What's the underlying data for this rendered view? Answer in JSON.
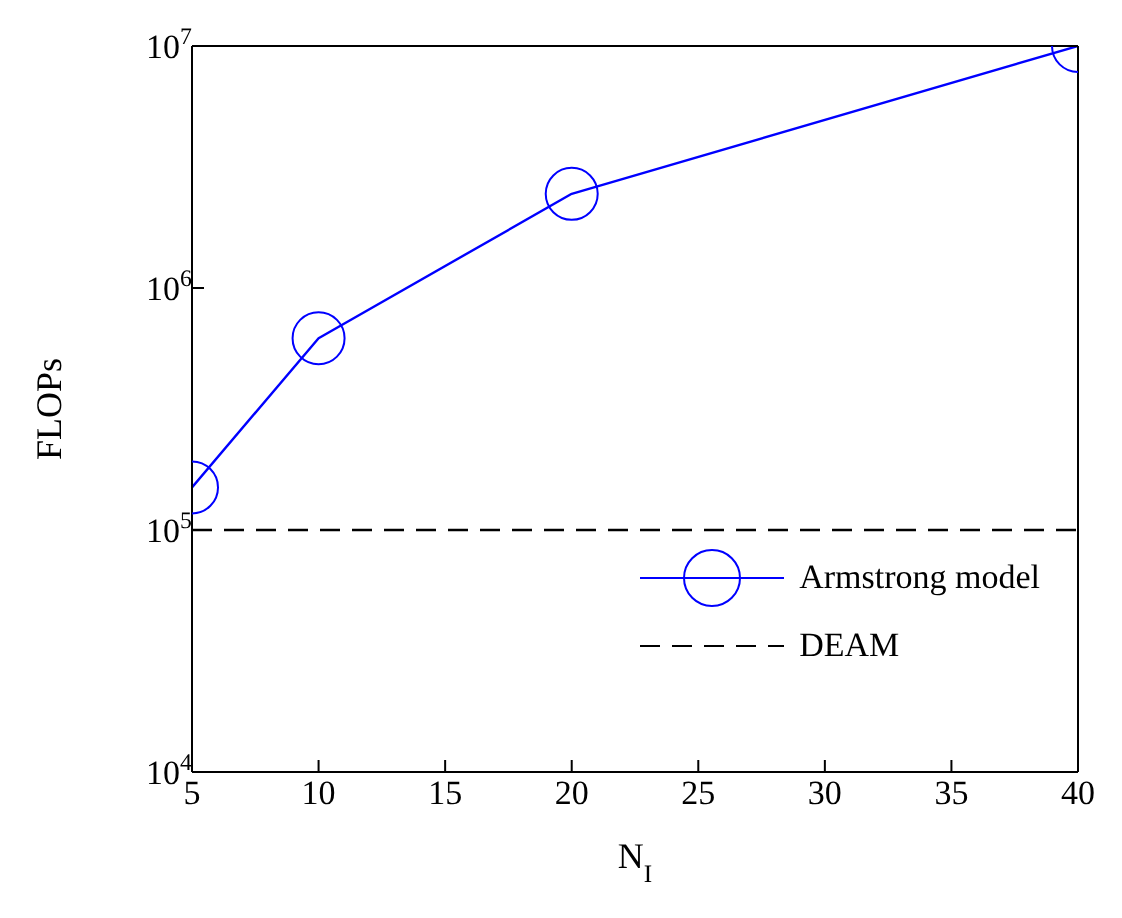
{
  "chart_data": {
    "type": "line",
    "xlabel": "N$_{I}$",
    "ylabel": "FLOPs",
    "log": "y",
    "xlim": [
      5,
      40
    ],
    "xticks": [
      5,
      10,
      15,
      20,
      25,
      30,
      35,
      40
    ],
    "ylim": [
      10000,
      10000000
    ],
    "yticks": [
      {
        "value": 10000,
        "label": "10$^{4}$"
      },
      {
        "value": 100000,
        "label": "10$^{5}$"
      },
      {
        "value": 1000000,
        "label": "10$^{6}$"
      },
      {
        "value": 10000000,
        "label": "10$^{7}$"
      }
    ],
    "legend": "bottom right",
    "series": [
      {
        "name": "Armstrong model",
        "color": "#0000ff",
        "x": [
          5,
          10,
          20,
          40
        ],
        "values": [
          150000,
          620000,
          2450000,
          10000000
        ],
        "marker": "circle",
        "line_style": "solid"
      },
      {
        "name": "DEAM",
        "color": "#000000",
        "x": [
          5,
          40
        ],
        "values": [
          100000,
          100000
        ],
        "marker": "none",
        "line_style": "dashed"
      }
    ]
  }
}
